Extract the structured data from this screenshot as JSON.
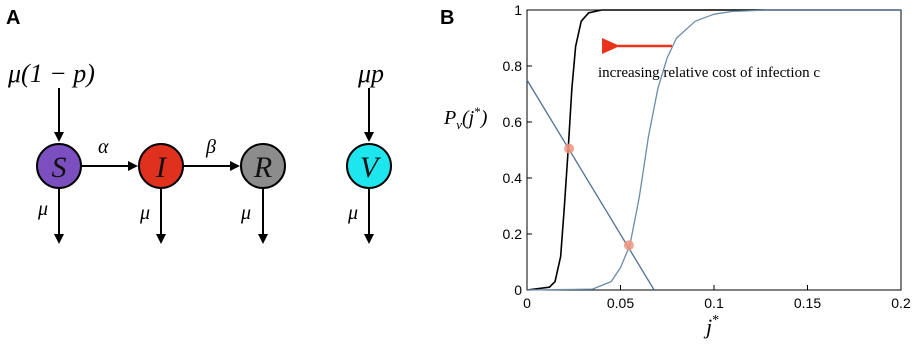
{
  "panels": {
    "a": {
      "letter": "A",
      "inflow_s": "μ(1 − p)",
      "inflow_v": "μp",
      "rate_si": "α",
      "rate_ir": "β",
      "death_rate": "μ",
      "nodes": [
        {
          "id": "S",
          "label": "S",
          "color": "#7b4fbf"
        },
        {
          "id": "I",
          "label": "I",
          "color": "#e0301e"
        },
        {
          "id": "R",
          "label": "R",
          "color": "#8c8c8c"
        },
        {
          "id": "V",
          "label": "V",
          "color": "#1ee6ef"
        }
      ]
    },
    "b": {
      "letter": "B",
      "ylabel": "P_v(j*)",
      "xlabel": "j*",
      "annotation": "increasing relative cost of infection c",
      "arrow_color": "#e8341a"
    }
  },
  "chart_data": {
    "type": "line",
    "xlim": [
      0,
      0.2
    ],
    "ylim": [
      0,
      1
    ],
    "x_ticks": [
      "0",
      "0.05",
      "0.1",
      "0.15",
      "0.2"
    ],
    "y_ticks": [
      "0",
      "0.2",
      "0.4",
      "0.6",
      "0.8",
      "1"
    ],
    "xlabel": "j*",
    "ylabel": "P_v(j*)",
    "grid": false,
    "series": [
      {
        "color": "#000000",
        "points": [
          [
            0,
            0
          ],
          [
            0.012,
            0.01
          ],
          [
            0.015,
            0.03
          ],
          [
            0.018,
            0.12
          ],
          [
            0.02,
            0.3
          ],
          [
            0.022,
            0.5
          ],
          [
            0.024,
            0.72
          ],
          [
            0.026,
            0.87
          ],
          [
            0.029,
            0.96
          ],
          [
            0.033,
            0.99
          ],
          [
            0.04,
            1.0
          ],
          [
            0.2,
            1.0
          ]
        ]
      },
      {
        "color": "#6a8cad",
        "points": [
          [
            0,
            0
          ],
          [
            0.035,
            0.003
          ],
          [
            0.045,
            0.03
          ],
          [
            0.05,
            0.08
          ],
          [
            0.055,
            0.16
          ],
          [
            0.06,
            0.33
          ],
          [
            0.065,
            0.55
          ],
          [
            0.07,
            0.72
          ],
          [
            0.075,
            0.83
          ],
          [
            0.08,
            0.9
          ],
          [
            0.09,
            0.96
          ],
          [
            0.1,
            0.985
          ],
          [
            0.11,
            0.995
          ],
          [
            0.13,
            1.0
          ],
          [
            0.2,
            1.0
          ]
        ]
      },
      {
        "color": "#4f7196",
        "points": [
          [
            0,
            0.75
          ],
          [
            0.068,
            0
          ]
        ]
      }
    ],
    "markers": [
      {
        "x": 0.0225,
        "y": 0.505,
        "color": "#f0947e"
      },
      {
        "x": 0.0545,
        "y": 0.16,
        "color": "#f0947e"
      }
    ]
  }
}
